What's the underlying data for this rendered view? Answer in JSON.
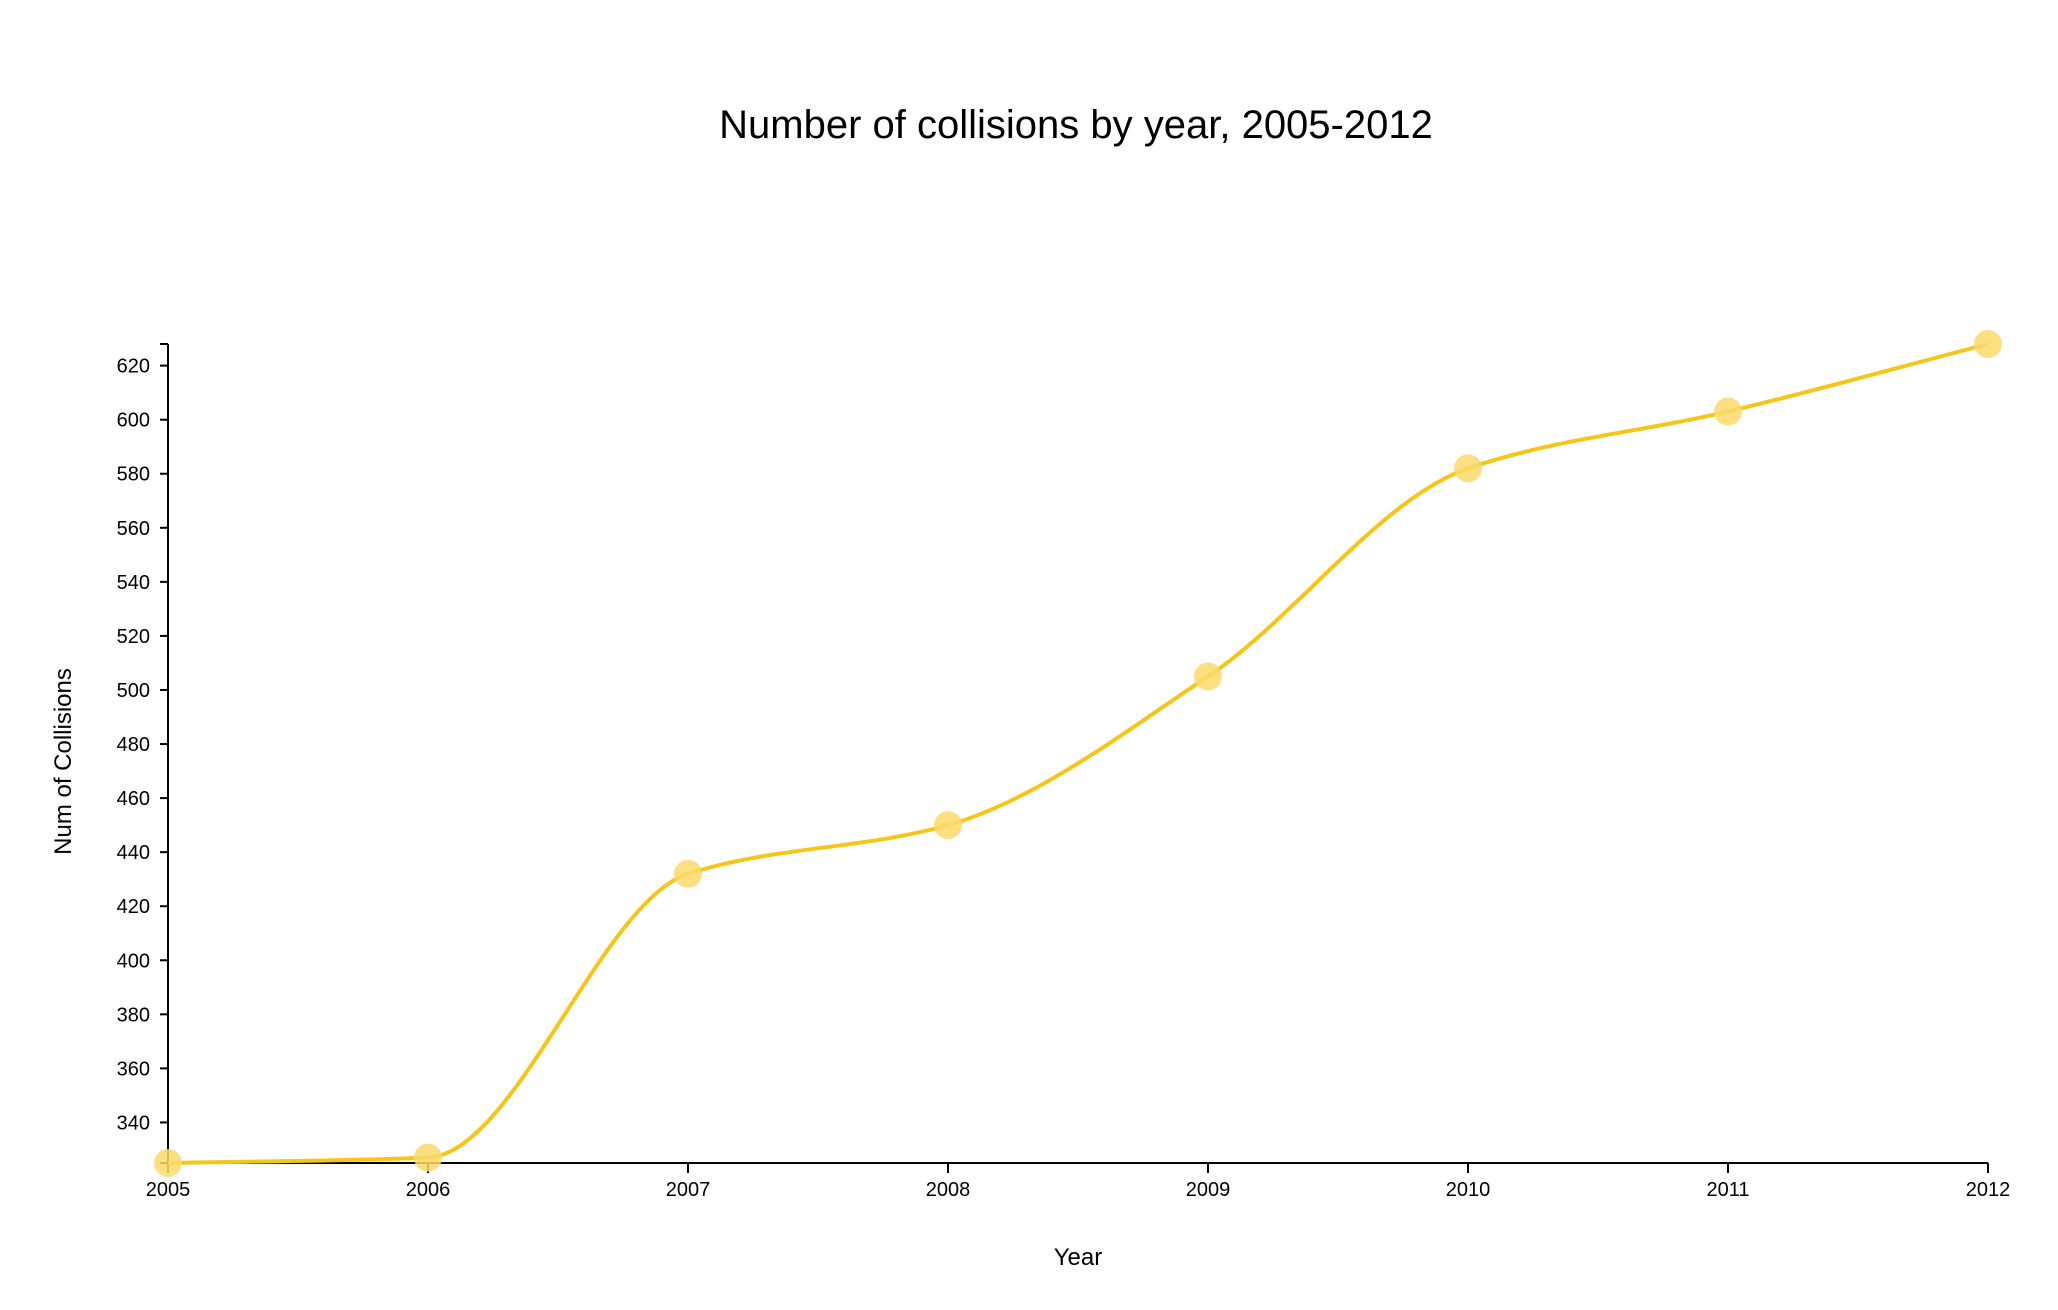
{
  "chart_data": {
    "type": "line",
    "title": "Number of collisions by year, 2005-2012",
    "xlabel": "Year",
    "ylabel": "Num of Collisions",
    "x": [
      "2005",
      "2006",
      "2007",
      "2008",
      "2009",
      "2010",
      "2011",
      "2012"
    ],
    "series": [
      {
        "values": [
          325,
          327,
          432,
          450,
          505,
          582,
          603,
          628
        ]
      }
    ],
    "yticks": [
      340,
      360,
      380,
      400,
      420,
      440,
      460,
      480,
      500,
      520,
      540,
      560,
      580,
      600,
      620
    ],
    "ylim": [
      325,
      628
    ],
    "line_color": "#f5c518",
    "marker_color": "#fcd96b",
    "grid": false,
    "legend": false
  }
}
